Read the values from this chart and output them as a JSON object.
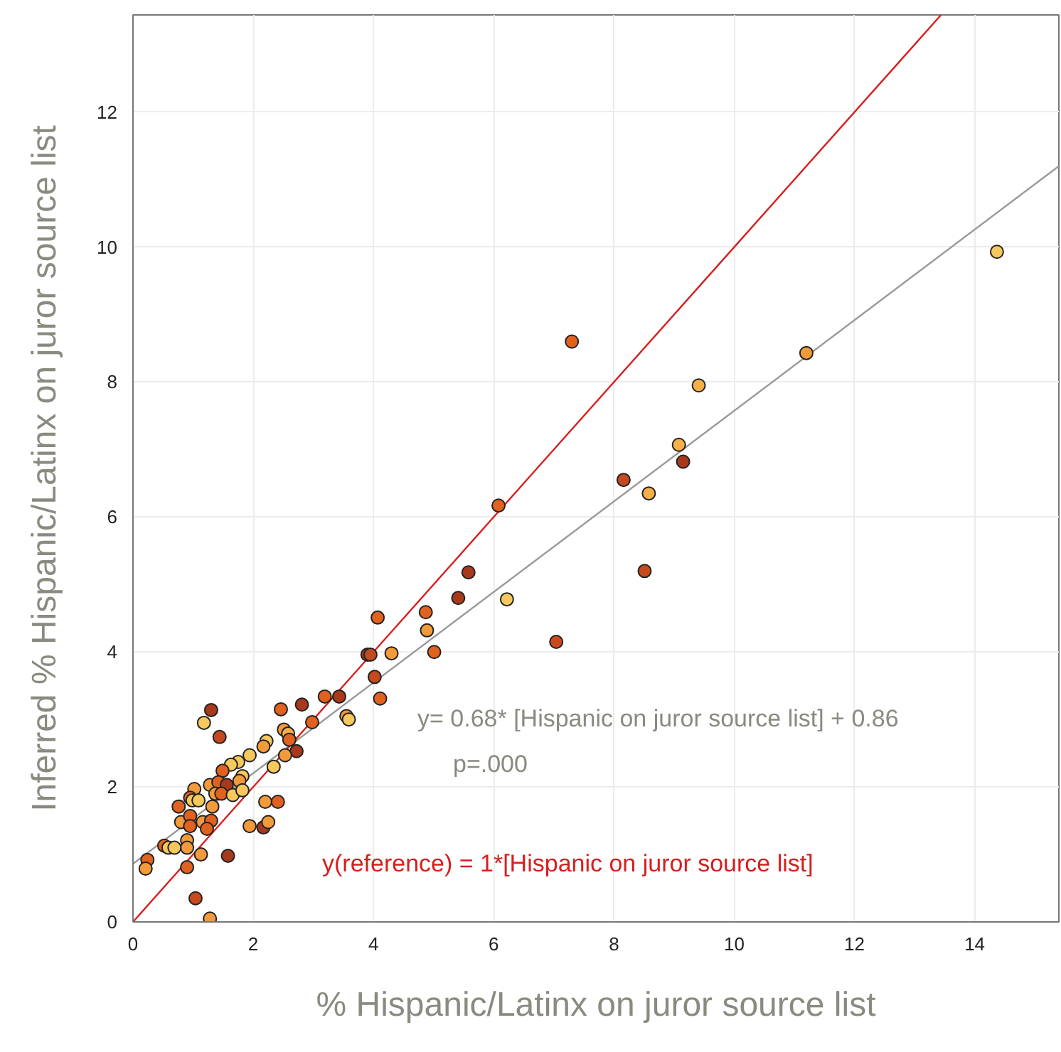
{
  "chart_data": {
    "type": "scatter",
    "xlabel": "% Hispanic/Latinx on juror source list",
    "ylabel": "Inferred % Hispanic/Latinx on juror source list",
    "xlim": [
      0,
      15.4
    ],
    "ylim": [
      0,
      13.44
    ],
    "xticks": [
      0,
      2,
      4,
      6,
      8,
      10,
      12,
      14
    ],
    "yticks": [
      0,
      2,
      4,
      6,
      8,
      10,
      12
    ],
    "grid": true,
    "annotations": [
      "y= 0.68* [Hispanic on juror source list] + 0.86",
      "p=.000",
      "y(reference) = 1*[Hispanic on juror source list]"
    ],
    "series": [
      {
        "marker": "circle",
        "x": [
          14.37,
          11.2,
          7.3,
          9.41,
          9.08,
          9.15,
          8.16,
          8.58,
          8.51,
          6.08,
          5.58,
          5.41,
          4.87,
          4.89,
          5.01,
          6.22,
          7.04,
          4.07,
          3.9,
          3.95,
          4.3,
          4.02,
          4.11,
          3.43,
          3.19,
          2.81,
          2.46,
          2.98,
          3.55,
          3.59,
          2.51,
          2.58,
          2.6,
          2.22,
          2.17,
          2.72,
          1.3,
          1.18,
          1.44,
          2.53,
          2.34,
          1.94,
          1.75,
          1.63,
          1.49,
          1.82,
          1.77,
          1.28,
          1.42,
          1.56,
          1.02,
          0.95,
          0.99,
          1.09,
          1.37,
          1.47,
          1.66,
          1.82,
          1.32,
          0.76,
          0.8,
          0.95,
          0.95,
          1.16,
          1.3,
          1.23,
          2.2,
          2.41,
          1.94,
          2.17,
          2.25,
          0.9,
          0.9,
          0.52,
          0.59,
          0.69,
          1.13,
          1.58,
          0.24,
          0.21,
          0.9,
          1.04,
          1.28
        ],
        "values": [
          9.93,
          8.43,
          8.6,
          7.95,
          7.07,
          6.82,
          6.55,
          6.35,
          5.2,
          6.17,
          5.18,
          4.8,
          4.59,
          4.32,
          4.0,
          4.78,
          4.15,
          4.51,
          3.96,
          3.96,
          3.98,
          3.63,
          3.31,
          3.34,
          3.34,
          3.22,
          3.15,
          2.96,
          3.05,
          3.0,
          2.85,
          2.79,
          2.7,
          2.68,
          2.6,
          2.53,
          3.14,
          2.95,
          2.74,
          2.47,
          2.3,
          2.47,
          2.37,
          2.33,
          2.24,
          2.16,
          2.09,
          2.03,
          2.07,
          2.03,
          1.97,
          1.84,
          1.8,
          1.8,
          1.9,
          1.9,
          1.88,
          1.95,
          1.71,
          1.71,
          1.48,
          1.57,
          1.42,
          1.48,
          1.5,
          1.38,
          1.78,
          1.78,
          1.42,
          1.4,
          1.48,
          1.21,
          1.1,
          1.13,
          1.1,
          1.1,
          1.0,
          0.98,
          0.92,
          0.79,
          0.81,
          0.35,
          0.05
        ],
        "colors": [
          "#f7c85c",
          "#f39a3a",
          "#e0621e",
          "#f5b04a",
          "#f5b04a",
          "#a8391c",
          "#c24a1e",
          "#f5b04a",
          "#c84a1c",
          "#e0621e",
          "#a8391c",
          "#a8391c",
          "#e0621e",
          "#f39a3a",
          "#e0621e",
          "#f7c85c",
          "#c84a1c",
          "#e0621e",
          "#a8391c",
          "#c24a1e",
          "#f39a3a",
          "#c24a1e",
          "#e0621e",
          "#a8391c",
          "#e0621e",
          "#a8391c",
          "#e0621e",
          "#e0621e",
          "#f39a3a",
          "#f7c85c",
          "#f39a3a",
          "#f5b04a",
          "#e0621e",
          "#f7c85c",
          "#f39a3a",
          "#a8391c",
          "#a8391c",
          "#f7c85c",
          "#c24a1e",
          "#f39a3a",
          "#f7c85c",
          "#f7c85c",
          "#f7c85c",
          "#f7c85c",
          "#e0621e",
          "#f7c85c",
          "#f39a3a",
          "#f39a3a",
          "#e0621e",
          "#a8391c",
          "#f39a3a",
          "#e0621e",
          "#f7c85c",
          "#f7c85c",
          "#f39a3a",
          "#e0621e",
          "#f7c85c",
          "#f7c85c",
          "#f39a3a",
          "#e0621e",
          "#f39a3a",
          "#e0621e",
          "#e0621e",
          "#f39a3a",
          "#e0621e",
          "#e0621e",
          "#f39a3a",
          "#e0621e",
          "#f39a3a",
          "#a8391c",
          "#f39a3a",
          "#f39a3a",
          "#f39a3a",
          "#e0621e",
          "#f7c85c",
          "#f7c85c",
          "#f39a3a",
          "#a8391c",
          "#e0621e",
          "#f39a3a",
          "#e0621e",
          "#c84a1c",
          "#f39a3a"
        ]
      },
      {
        "type": "line",
        "color": "#999999",
        "x": [
          0,
          15.4
        ],
        "values": [
          0.86,
          11.2
        ]
      },
      {
        "type": "line",
        "color": "#d81e1e",
        "x": [
          0,
          13.44
        ],
        "values": [
          0,
          13.44
        ]
      }
    ]
  }
}
